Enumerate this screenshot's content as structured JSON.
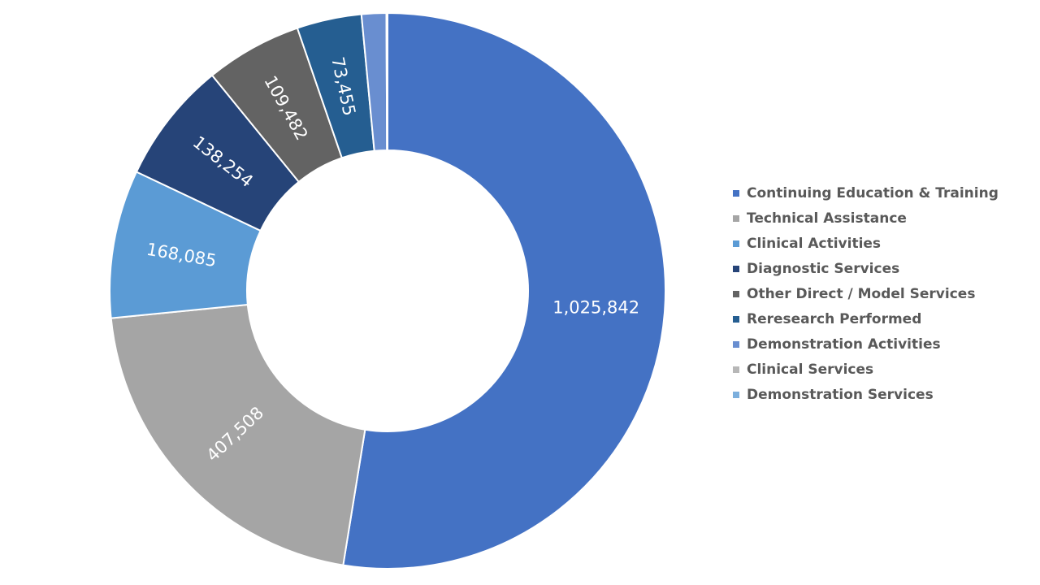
{
  "chart_data": {
    "type": "pie",
    "subtype": "doughnut",
    "categories": [
      "Continuing Education & Training",
      "Technical Assistance",
      "Clinical Activities",
      "Diagnostic Services",
      "Other Direct / Model Services",
      "Reresearch Performed",
      "Demonstration Activities",
      "Clinical Services",
      "Demonstration Services"
    ],
    "values": [
      1025842,
      407508,
      168085,
      138254,
      109482,
      73455,
      28000,
      900,
      400
    ],
    "data_labels": [
      "1,025,842",
      "407,508",
      "168,085",
      "138,254",
      "109,482",
      "73,455",
      "",
      "",
      ""
    ],
    "colors": [
      "#4472C4",
      "#A5A5A5",
      "#5B9BD5",
      "#264478",
      "#636363",
      "#255E91",
      "#698ED0",
      "#B7B7B7",
      "#7CAFDD"
    ],
    "legend_position": "right"
  }
}
